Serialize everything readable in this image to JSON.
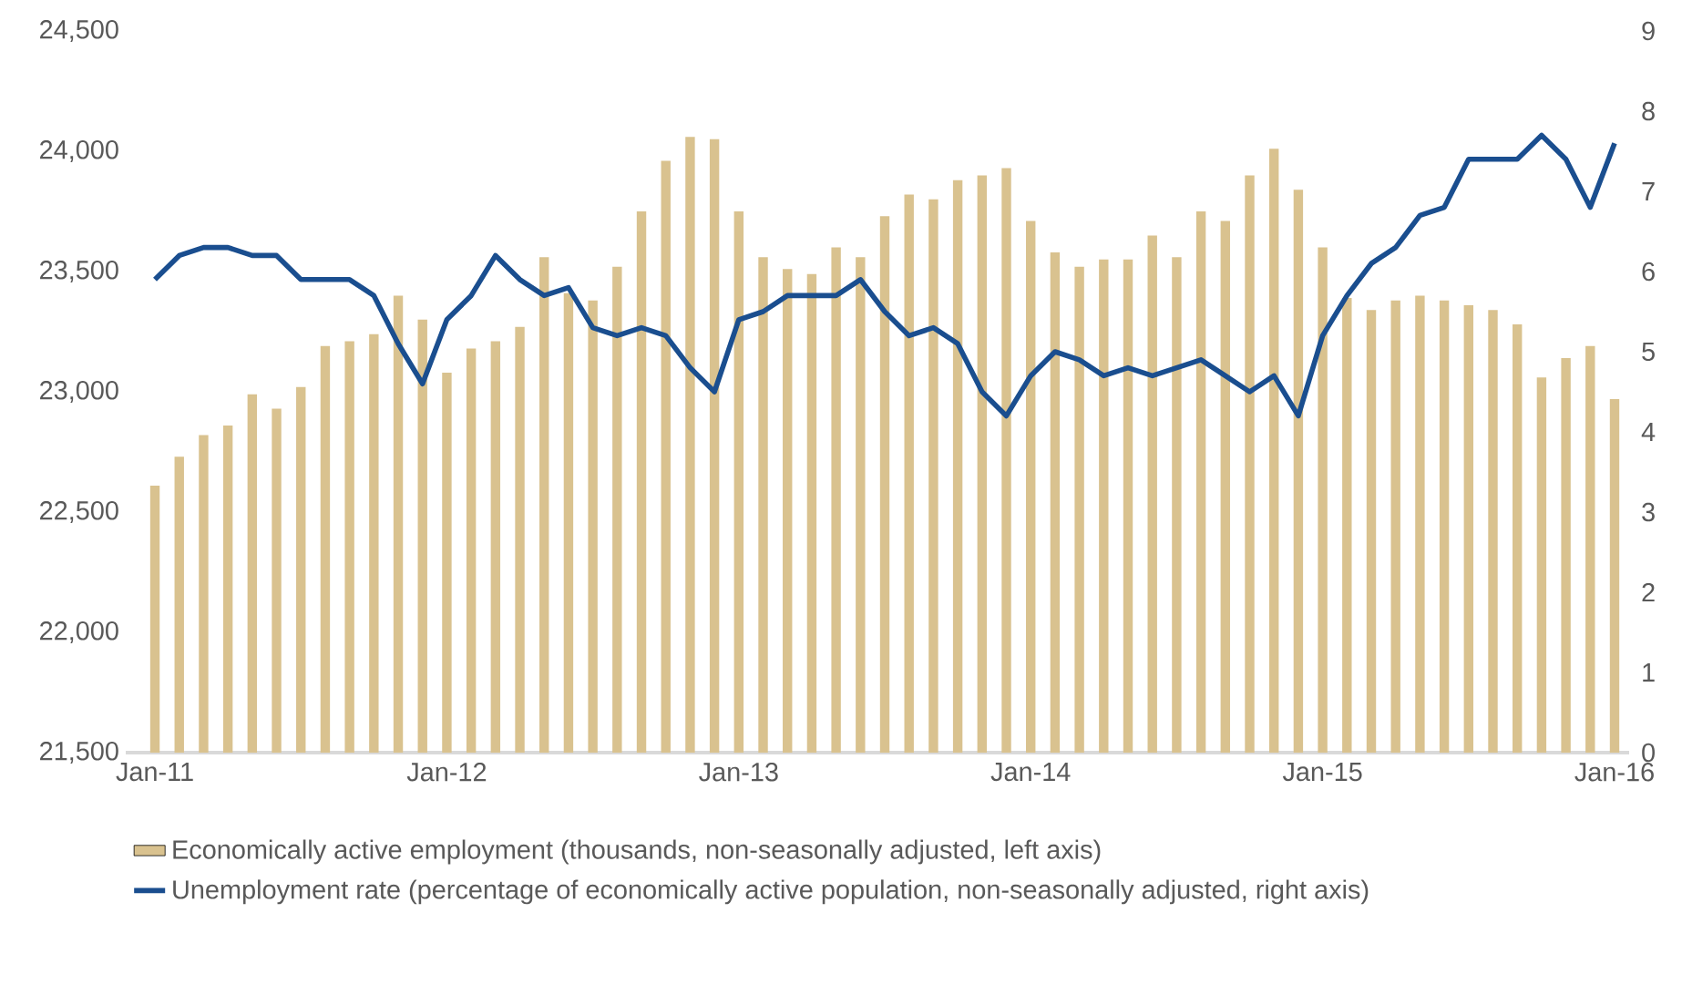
{
  "chart_data": {
    "type": "bar",
    "categories": [
      "Jan-11",
      null,
      null,
      null,
      null,
      null,
      null,
      null,
      null,
      null,
      null,
      null,
      "Jan-12",
      null,
      null,
      null,
      null,
      null,
      null,
      null,
      null,
      null,
      null,
      null,
      "Jan-13",
      null,
      null,
      null,
      null,
      null,
      null,
      null,
      null,
      null,
      null,
      null,
      "Jan-14",
      null,
      null,
      null,
      null,
      null,
      null,
      null,
      null,
      null,
      null,
      null,
      "Jan-15",
      null,
      null,
      null,
      null,
      null,
      null,
      null,
      null,
      null,
      null,
      null,
      "Jan-16"
    ],
    "series": [
      {
        "name": "Economically active employment (thousands, non-seasonally adjusted, left axis)",
        "color": "#d9c28f",
        "values": [
          22610,
          22730,
          22820,
          22860,
          22990,
          22930,
          23020,
          23190,
          23210,
          23240,
          23400,
          23300,
          23080,
          23180,
          23210,
          23270,
          23560,
          23410,
          23380,
          23520,
          23750,
          23960,
          24060,
          24050,
          23750,
          23560,
          23510,
          23490,
          23600,
          23560,
          23730,
          23820,
          23800,
          23880,
          23900,
          23930,
          23710,
          23580,
          23520,
          23550,
          23550,
          23650,
          23560,
          23750,
          23710,
          23900,
          24010,
          23840,
          23600,
          23390,
          23340,
          23380,
          23400,
          23380,
          23360,
          23340,
          23280,
          23060,
          23140,
          23190,
          22970
        ]
      },
      {
        "name": "Unemployment rate (percentage of economically active population, non-seasonally adjusted, right axis)",
        "type": "line",
        "axis": "y2",
        "color": "#1a4e8f",
        "values": [
          5.9,
          6.2,
          6.3,
          6.3,
          6.2,
          6.2,
          5.9,
          5.9,
          5.9,
          5.7,
          5.1,
          4.6,
          5.4,
          5.7,
          6.2,
          5.9,
          5.7,
          5.8,
          5.3,
          5.2,
          5.3,
          5.2,
          4.8,
          4.5,
          5.4,
          5.5,
          5.7,
          5.7,
          5.7,
          5.9,
          5.5,
          5.2,
          5.3,
          5.1,
          4.5,
          4.2,
          4.7,
          5.0,
          4.9,
          4.7,
          4.8,
          4.7,
          4.8,
          4.9,
          4.7,
          4.5,
          4.7,
          4.2,
          5.2,
          5.7,
          6.1,
          6.3,
          6.7,
          6.8,
          7.4,
          7.4,
          7.4,
          7.7,
          7.4,
          6.8,
          7.6
        ]
      }
    ],
    "ylim": [
      21500,
      24500
    ],
    "yticks": [
      {
        "value": 21500,
        "label": "21,500"
      },
      {
        "value": 22000,
        "label": "22,000"
      },
      {
        "value": 22500,
        "label": "22,500"
      },
      {
        "value": 23000,
        "label": "23,000"
      },
      {
        "value": 23500,
        "label": "23,500"
      },
      {
        "value": 24000,
        "label": "24,000"
      },
      {
        "value": 24500,
        "label": "24,500"
      }
    ],
    "y2lim": [
      0,
      9
    ],
    "y2ticks": [
      0,
      1,
      2,
      3,
      4,
      5,
      6,
      7,
      8,
      9
    ],
    "grid": false,
    "legend": "bottom",
    "line_style": "solid",
    "marker": "none"
  }
}
